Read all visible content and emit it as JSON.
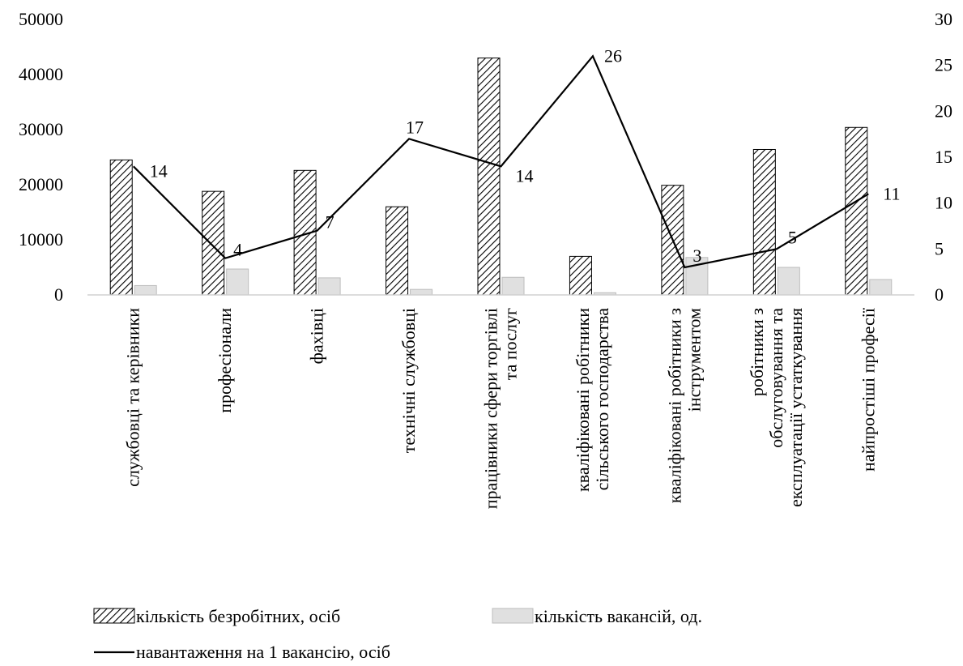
{
  "chart_data": {
    "type": "bar",
    "categories": [
      [
        "службовці та керівники"
      ],
      [
        "професіонали"
      ],
      [
        "фахівці"
      ],
      [
        "технічні службовці"
      ],
      [
        "працівники сфери торгівлі",
        "та послуг"
      ],
      [
        "кваліфіковані робітники",
        "сільського господарства"
      ],
      [
        "кваліфіковані робітники з",
        "інструментом"
      ],
      [
        "робітники з",
        "обслуговування та",
        "експлуатації  устаткування"
      ],
      [
        "найпростіші професії"
      ]
    ],
    "series": [
      {
        "name": "кількість безробітних, осіб",
        "kind": "bar",
        "axis": "left",
        "pattern": "hatch",
        "values": [
          24500,
          18800,
          22600,
          16000,
          43000,
          7000,
          19900,
          26400,
          30400
        ]
      },
      {
        "name": "кількість вакансій, од.",
        "kind": "bar",
        "axis": "left",
        "color": "#e0e0e0",
        "values": [
          1700,
          4700,
          3100,
          1000,
          3200,
          400,
          6800,
          5000,
          2800
        ]
      },
      {
        "name": "навантаження на 1 вакансію, осіб",
        "kind": "line",
        "axis": "right",
        "color": "#000000",
        "values": [
          14,
          4,
          7,
          17,
          14,
          26,
          3,
          5,
          11
        ],
        "labels": [
          "14",
          "4",
          "7",
          "17",
          "14",
          "26",
          "3",
          "5",
          "11"
        ]
      }
    ],
    "y_left": {
      "min": 0,
      "max": 50000,
      "ticks": [
        0,
        10000,
        20000,
        30000,
        40000,
        50000
      ]
    },
    "y_right": {
      "min": 0,
      "max": 30,
      "ticks": [
        0,
        5,
        10,
        15,
        20,
        25,
        30
      ]
    },
    "grid": false,
    "legend_position": "bottom"
  }
}
